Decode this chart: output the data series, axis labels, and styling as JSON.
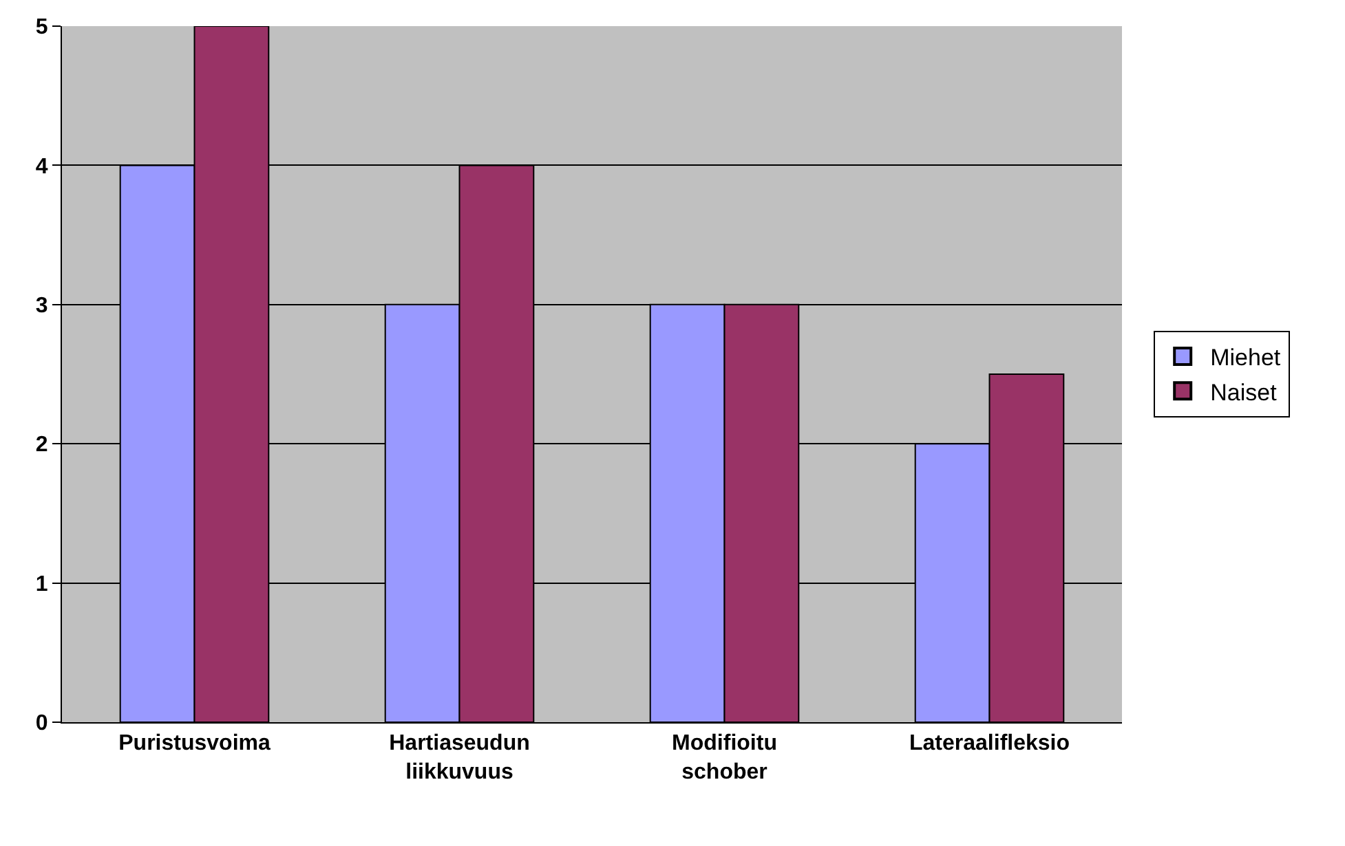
{
  "chart_data": {
    "type": "bar",
    "categories": [
      "Puristusvoima",
      "Hartiaseudun liikkuvuus",
      "Modifioitu schober",
      "Lateraalifleksio"
    ],
    "series": [
      {
        "name": "Miehet",
        "color": "#9999ff",
        "values": [
          4,
          3,
          3,
          2
        ]
      },
      {
        "name": "Naiset",
        "color": "#993366",
        "values": [
          5,
          4,
          3,
          2.5
        ]
      }
    ],
    "ylim": [
      0,
      5
    ],
    "yticks": [
      0,
      1,
      2,
      3,
      4,
      5
    ],
    "grid": "y",
    "legend": "right"
  }
}
